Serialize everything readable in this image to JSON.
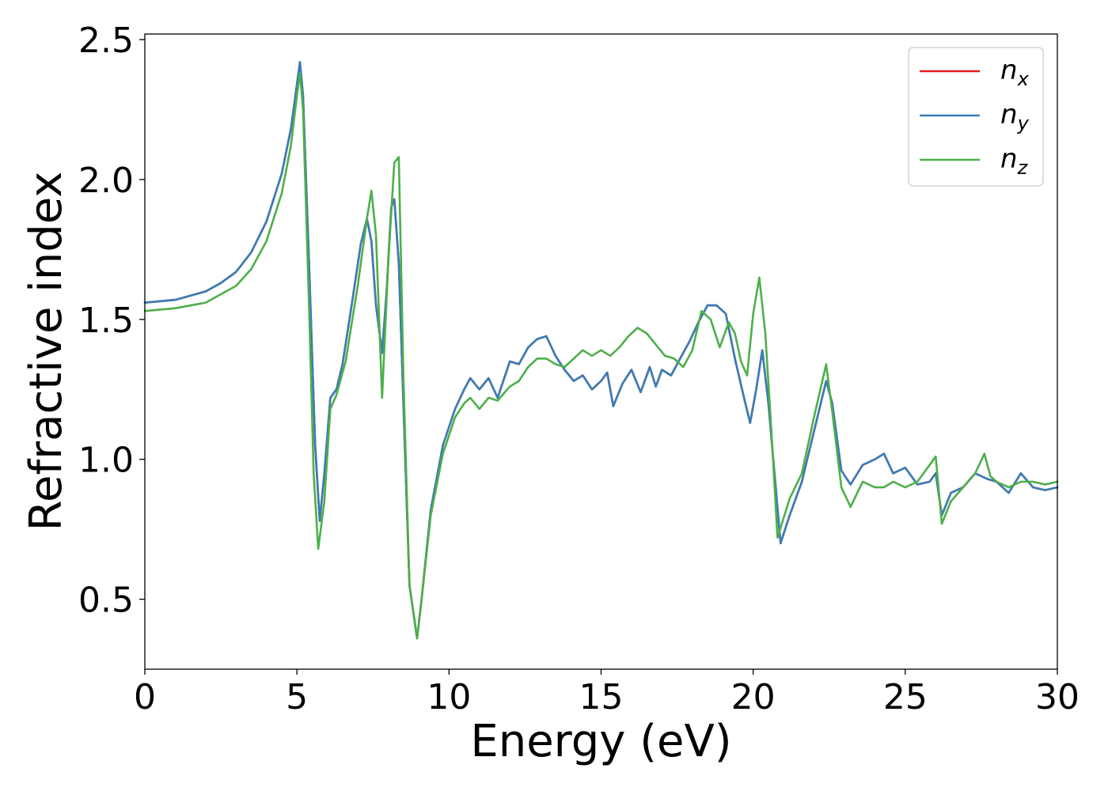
{
  "chart_data": {
    "type": "line",
    "xlabel": "Energy (eV)",
    "ylabel": "Refractive index",
    "xlim": [
      0,
      30
    ],
    "ylim": [
      0.25,
      2.52
    ],
    "xticks": [
      0,
      5,
      10,
      15,
      20,
      25,
      30
    ],
    "xtick_labels": [
      "0",
      "5",
      "10",
      "15",
      "20",
      "25",
      "30"
    ],
    "yticks": [
      0.5,
      1.0,
      1.5,
      2.0,
      2.5
    ],
    "ytick_labels": [
      "0.5",
      "1.0",
      "1.5",
      "2.0",
      "2.5"
    ],
    "grid": false,
    "legend_position": "top-right",
    "series": [
      {
        "name": "n_x",
        "legend_base": "n",
        "legend_sub": "x",
        "color": "#e41a1c",
        "x": [
          0,
          1,
          2,
          2.5,
          3,
          3.5,
          4,
          4.5,
          4.8,
          5.0,
          5.1,
          5.2,
          5.4,
          5.6,
          5.75,
          5.9,
          6.1,
          6.3,
          6.5,
          6.8,
          7.1,
          7.3,
          7.45,
          7.6,
          7.8,
          7.95,
          8.1,
          8.2,
          8.35,
          8.5,
          8.7,
          8.95,
          9.1,
          9.4,
          9.8,
          10.2,
          10.5,
          10.7,
          11,
          11.3,
          11.6,
          12,
          12.3,
          12.6,
          12.9,
          13.2,
          13.5,
          13.8,
          14.1,
          14.4,
          14.7,
          15.0,
          15.2,
          15.4,
          15.7,
          16.0,
          16.3,
          16.6,
          16.8,
          17.0,
          17.3,
          17.6,
          17.9,
          18.2,
          18.5,
          18.8,
          19.1,
          19.4,
          19.7,
          19.9,
          20.1,
          20.3,
          20.5,
          20.7,
          20.9,
          21.2,
          21.6,
          22.0,
          22.4,
          22.6,
          22.9,
          23.2,
          23.6,
          24.0,
          24.3,
          24.6,
          25.0,
          25.4,
          25.8,
          26.0,
          26.2,
          26.5,
          26.9,
          27.3,
          27.7,
          28.0,
          28.4,
          28.8,
          29.2,
          29.6,
          30.0
        ],
        "y": [
          1.56,
          1.57,
          1.6,
          1.63,
          1.67,
          1.74,
          1.85,
          2.02,
          2.18,
          2.34,
          2.42,
          2.3,
          1.7,
          1.05,
          0.78,
          0.95,
          1.22,
          1.25,
          1.34,
          1.55,
          1.77,
          1.86,
          1.78,
          1.55,
          1.38,
          1.6,
          1.9,
          1.93,
          1.7,
          1.2,
          0.55,
          0.36,
          0.5,
          0.82,
          1.05,
          1.18,
          1.25,
          1.29,
          1.25,
          1.29,
          1.22,
          1.35,
          1.34,
          1.4,
          1.43,
          1.44,
          1.37,
          1.32,
          1.28,
          1.3,
          1.25,
          1.28,
          1.31,
          1.19,
          1.27,
          1.32,
          1.24,
          1.33,
          1.26,
          1.32,
          1.3,
          1.36,
          1.42,
          1.49,
          1.55,
          1.55,
          1.52,
          1.36,
          1.22,
          1.13,
          1.25,
          1.39,
          1.2,
          0.95,
          0.7,
          0.8,
          0.92,
          1.1,
          1.28,
          1.2,
          0.96,
          0.91,
          0.98,
          1.0,
          1.02,
          0.95,
          0.97,
          0.91,
          0.92,
          0.95,
          0.8,
          0.88,
          0.9,
          0.95,
          0.93,
          0.92,
          0.88,
          0.95,
          0.9,
          0.89,
          0.9
        ]
      },
      {
        "name": "n_y",
        "legend_base": "n",
        "legend_sub": "y",
        "color": "#377eb8",
        "x": [
          0,
          1,
          2,
          2.5,
          3,
          3.5,
          4,
          4.5,
          4.8,
          5.0,
          5.1,
          5.2,
          5.4,
          5.6,
          5.75,
          5.9,
          6.1,
          6.3,
          6.5,
          6.8,
          7.1,
          7.3,
          7.45,
          7.6,
          7.8,
          7.95,
          8.1,
          8.2,
          8.35,
          8.5,
          8.7,
          8.95,
          9.1,
          9.4,
          9.8,
          10.2,
          10.5,
          10.7,
          11,
          11.3,
          11.6,
          12,
          12.3,
          12.6,
          12.9,
          13.2,
          13.5,
          13.8,
          14.1,
          14.4,
          14.7,
          15.0,
          15.2,
          15.4,
          15.7,
          16.0,
          16.3,
          16.6,
          16.8,
          17.0,
          17.3,
          17.6,
          17.9,
          18.2,
          18.5,
          18.8,
          19.1,
          19.4,
          19.7,
          19.9,
          20.1,
          20.3,
          20.5,
          20.7,
          20.9,
          21.2,
          21.6,
          22.0,
          22.4,
          22.6,
          22.9,
          23.2,
          23.6,
          24.0,
          24.3,
          24.6,
          25.0,
          25.4,
          25.8,
          26.0,
          26.2,
          26.5,
          26.9,
          27.3,
          27.7,
          28.0,
          28.4,
          28.8,
          29.2,
          29.6,
          30.0
        ],
        "y": [
          1.56,
          1.57,
          1.6,
          1.63,
          1.67,
          1.74,
          1.85,
          2.02,
          2.18,
          2.34,
          2.42,
          2.3,
          1.7,
          1.05,
          0.78,
          0.95,
          1.22,
          1.25,
          1.34,
          1.55,
          1.77,
          1.86,
          1.78,
          1.55,
          1.38,
          1.6,
          1.9,
          1.93,
          1.7,
          1.2,
          0.55,
          0.36,
          0.5,
          0.82,
          1.05,
          1.18,
          1.25,
          1.29,
          1.25,
          1.29,
          1.22,
          1.35,
          1.34,
          1.4,
          1.43,
          1.44,
          1.37,
          1.32,
          1.28,
          1.3,
          1.25,
          1.28,
          1.31,
          1.19,
          1.27,
          1.32,
          1.24,
          1.33,
          1.26,
          1.32,
          1.3,
          1.36,
          1.42,
          1.49,
          1.55,
          1.55,
          1.52,
          1.36,
          1.22,
          1.13,
          1.25,
          1.39,
          1.2,
          0.95,
          0.7,
          0.8,
          0.92,
          1.1,
          1.28,
          1.2,
          0.96,
          0.91,
          0.98,
          1.0,
          1.02,
          0.95,
          0.97,
          0.91,
          0.92,
          0.95,
          0.8,
          0.88,
          0.9,
          0.95,
          0.93,
          0.92,
          0.88,
          0.95,
          0.9,
          0.89,
          0.9
        ]
      },
      {
        "name": "n_z",
        "legend_base": "n",
        "legend_sub": "z",
        "color": "#4daf4a",
        "x": [
          0,
          1,
          2,
          2.5,
          3,
          3.5,
          4,
          4.5,
          4.8,
          5.0,
          5.1,
          5.2,
          5.4,
          5.55,
          5.7,
          5.9,
          6.1,
          6.3,
          6.6,
          7.0,
          7.3,
          7.45,
          7.6,
          7.8,
          8.0,
          8.2,
          8.35,
          8.5,
          8.7,
          8.95,
          9.1,
          9.4,
          9.8,
          10.2,
          10.5,
          10.7,
          11,
          11.3,
          11.6,
          12,
          12.3,
          12.6,
          12.9,
          13.2,
          13.5,
          13.8,
          14.1,
          14.4,
          14.7,
          15.0,
          15.3,
          15.6,
          15.9,
          16.2,
          16.5,
          16.8,
          17.1,
          17.4,
          17.7,
          18.0,
          18.3,
          18.6,
          18.9,
          19.2,
          19.4,
          19.6,
          19.8,
          20.0,
          20.2,
          20.4,
          20.6,
          20.8,
          21.2,
          21.6,
          22.0,
          22.4,
          22.6,
          22.9,
          23.2,
          23.6,
          24.0,
          24.3,
          24.6,
          25.0,
          25.4,
          25.8,
          26.0,
          26.2,
          26.5,
          26.9,
          27.3,
          27.6,
          27.8,
          28.0,
          28.4,
          28.8,
          29.2,
          29.6,
          30.0
        ],
        "y": [
          1.53,
          1.54,
          1.56,
          1.59,
          1.62,
          1.68,
          1.78,
          1.95,
          2.12,
          2.3,
          2.38,
          2.25,
          1.55,
          0.95,
          0.68,
          0.85,
          1.18,
          1.23,
          1.35,
          1.62,
          1.86,
          1.96,
          1.8,
          1.22,
          1.7,
          2.06,
          2.08,
          1.3,
          0.55,
          0.36,
          0.5,
          0.8,
          1.02,
          1.15,
          1.2,
          1.22,
          1.18,
          1.22,
          1.21,
          1.26,
          1.28,
          1.33,
          1.36,
          1.36,
          1.34,
          1.33,
          1.36,
          1.39,
          1.37,
          1.39,
          1.37,
          1.4,
          1.44,
          1.47,
          1.45,
          1.41,
          1.37,
          1.36,
          1.33,
          1.39,
          1.53,
          1.5,
          1.4,
          1.49,
          1.45,
          1.35,
          1.3,
          1.52,
          1.65,
          1.45,
          1.1,
          0.72,
          0.86,
          0.95,
          1.15,
          1.34,
          1.17,
          0.9,
          0.83,
          0.92,
          0.9,
          0.9,
          0.92,
          0.9,
          0.92,
          0.98,
          1.01,
          0.77,
          0.85,
          0.9,
          0.95,
          1.02,
          0.94,
          0.92,
          0.9,
          0.92,
          0.92,
          0.91,
          0.92
        ]
      }
    ]
  }
}
